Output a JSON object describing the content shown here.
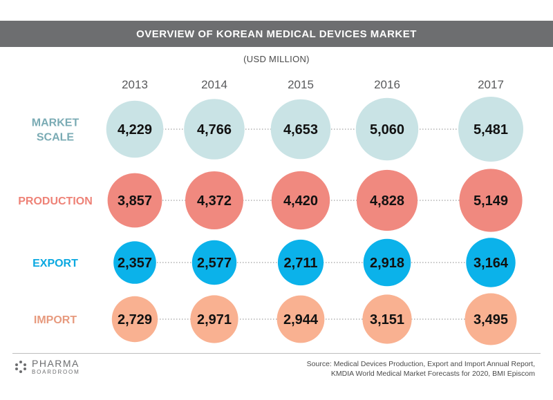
{
  "banner": {
    "title": "OVERVIEW OF KOREAN MEDICAL DEVICES MARKET"
  },
  "unit_label": "(USD MILLION)",
  "source": {
    "line1": "Source: Medical Devices Production, Export and Import Annual Report,",
    "line2": "KMDIA World Medical Market Forecasts for 2020, BMI Episcom"
  },
  "logo": {
    "line1": "PHARMA",
    "line2": "BOARDROOM"
  },
  "colors": {
    "banner": "#6d6e70",
    "market_scale": "#c9e3e5",
    "production": "#f0897f",
    "export": "#0bb2ea",
    "import": "#f9b191"
  },
  "chart_data": {
    "type": "bubble",
    "categories": [
      "2013",
      "2014",
      "2015",
      "2016",
      "2017"
    ],
    "series": [
      {
        "name": "MARKET\nSCALE",
        "label_lines": [
          "MARKET",
          "SCALE"
        ],
        "color": "#c9e3e5",
        "label_color": "#7aabb4",
        "values": [
          4229,
          4766,
          4653,
          5060,
          5481
        ],
        "value_labels": [
          "4,229",
          "4,766",
          "4,653",
          "5,060",
          "5,481"
        ]
      },
      {
        "name": "PRODUCTION",
        "label_lines": [
          "PRODUCTION"
        ],
        "color": "#f0897f",
        "label_color": "#ee8277",
        "values": [
          3857,
          4372,
          4420,
          4828,
          5149
        ],
        "value_labels": [
          "3,857",
          "4,372",
          "4,420",
          "4,828",
          "5,149"
        ]
      },
      {
        "name": "EXPORT",
        "label_lines": [
          "EXPORT"
        ],
        "color": "#0bb2ea",
        "label_color": "#0aa8e0",
        "values": [
          2357,
          2577,
          2711,
          2918,
          3164
        ],
        "value_labels": [
          "2,357",
          "2,577",
          "2,711",
          "2,918",
          "3,164"
        ]
      },
      {
        "name": "IMPORT",
        "label_lines": [
          "IMPORT"
        ],
        "color": "#f9b191",
        "label_color": "#e79a7e",
        "values": [
          2729,
          2971,
          2944,
          3151,
          3495
        ],
        "value_labels": [
          "2,729",
          "2,971",
          "2,944",
          "3,151",
          "3,495"
        ]
      }
    ]
  }
}
